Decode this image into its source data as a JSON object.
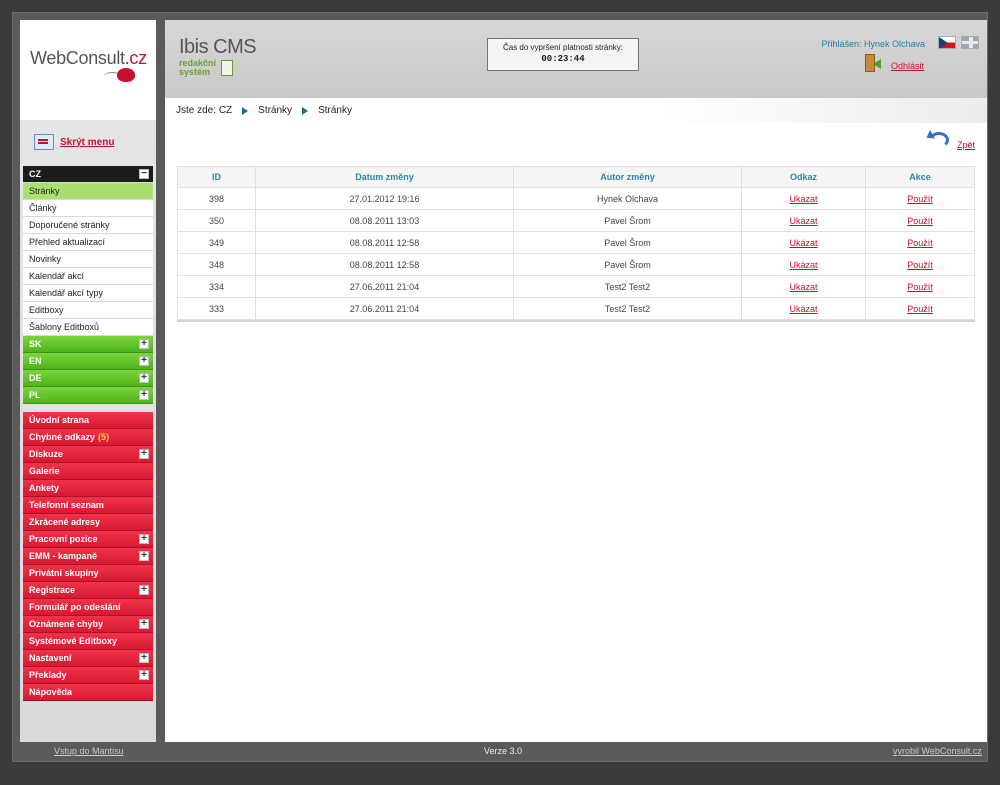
{
  "brand": {
    "logo_prefix": "WebConsult",
    "logo_suffix": ".cz"
  },
  "sidebar": {
    "hide_menu": "Skrýt menu",
    "cz": "CZ",
    "cz_items": [
      "Stránky",
      "Články",
      "Doporučené stránky",
      "Přehled aktualizací",
      "Novinky",
      "Kalendář akcí",
      "Kalendář akcí typy",
      "Editboxy",
      "Šablony Editboxů"
    ],
    "langs": [
      "SK",
      "EN",
      "DE",
      "PL"
    ],
    "modules": [
      {
        "label": "Úvodní strana",
        "expand": false
      },
      {
        "label": "Chybné odkazy",
        "badge": "(5)",
        "expand": false
      },
      {
        "label": "Diskuze",
        "expand": true
      },
      {
        "label": "Galerie",
        "expand": false
      },
      {
        "label": "Ankety",
        "expand": false
      },
      {
        "label": "Telefonní seznam",
        "expand": false
      },
      {
        "label": "Zkrácené adresy",
        "expand": false
      },
      {
        "label": "Pracovní pozice",
        "expand": true
      },
      {
        "label": "EMM - kampaně",
        "expand": true
      },
      {
        "label": "Privátní skupiny",
        "expand": false
      },
      {
        "label": "Registrace",
        "expand": true
      },
      {
        "label": "Formulář po odeslání",
        "expand": false
      },
      {
        "label": "Oznámené chyby",
        "expand": true
      },
      {
        "label": "Systémové Editboxy",
        "expand": false
      },
      {
        "label": "Nastavení",
        "expand": true
      },
      {
        "label": "Překlady",
        "expand": true
      },
      {
        "label": "Nápověda",
        "expand": false
      }
    ]
  },
  "header": {
    "cms_title": "Ibis CMS",
    "cms_sub1": "redakční",
    "cms_sub2": "systém",
    "timer_label": "Čas do vypršení platnosti stránky:",
    "timer_value": "00:23:44",
    "logged_in": "Přihlášen: Hynek Olchava",
    "logout": "Odhlásit"
  },
  "breadcrumb": {
    "prefix": "Jste zde:",
    "items": [
      "CZ",
      "Stránky",
      "Stránky"
    ]
  },
  "back_label": "Zpět",
  "table": {
    "columns": [
      "ID",
      "Datum změny",
      "Autor změny",
      "Odkaz",
      "Akce"
    ],
    "rows": [
      {
        "id": "398",
        "date": "27.01.2012 19:16",
        "author": "Hynek Olchava",
        "link": "Ukázat",
        "action": "Použít"
      },
      {
        "id": "350",
        "date": "08.08.2011 13:03",
        "author": "Pavel Šrom",
        "link": "Ukázat",
        "action": "Použít"
      },
      {
        "id": "349",
        "date": "08.08.2011 12:58",
        "author": "Pavel Šrom",
        "link": "Ukázat",
        "action": "Použít"
      },
      {
        "id": "348",
        "date": "08.08.2011 12:58",
        "author": "Pavel Šrom",
        "link": "Ukázat",
        "action": "Použít"
      },
      {
        "id": "334",
        "date": "27.06.2011 21:04",
        "author": "Test2 Test2",
        "link": "Ukázat",
        "action": "Použít"
      },
      {
        "id": "333",
        "date": "27.06.2011 21:04",
        "author": "Test2 Test2",
        "link": "Ukázat",
        "action": "Použít"
      }
    ]
  },
  "footer": {
    "left": "Vstup do Mantisu",
    "center": "Verze 3.0",
    "right": "vyrobil WebConsult.cz"
  }
}
